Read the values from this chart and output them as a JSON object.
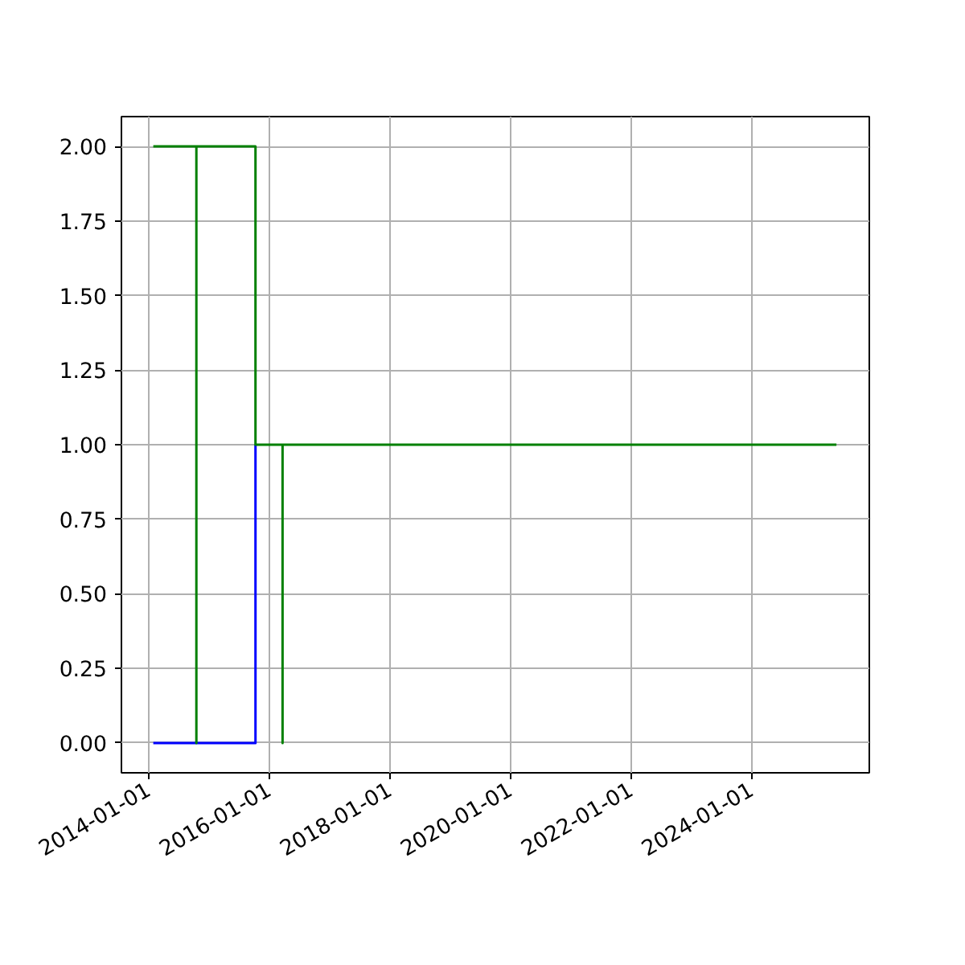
{
  "chart_data": {
    "type": "step",
    "series": [
      {
        "color": "#0000ff",
        "x": [
          "2014-02-01",
          "2015-10-13"
        ],
        "values": [
          0,
          1
        ]
      },
      {
        "color": "#008000",
        "x": [
          "2014-02-01",
          "2014-10-20",
          "2014-10-20",
          "2015-10-13",
          "2016-03-25",
          "2016-03-25",
          "2025-06-01"
        ],
        "values": [
          2,
          0,
          2,
          1,
          0,
          1,
          1
        ]
      }
    ],
    "xlim": [
      "2013-07-23",
      "2025-12-17"
    ],
    "xticks": [
      "2014-01-01",
      "2016-01-01",
      "2018-01-01",
      "2020-01-01",
      "2022-01-01",
      "2024-01-01"
    ],
    "ylim": [
      -0.1,
      2.1
    ],
    "yticks": [
      {
        "value": 0,
        "label": "0.00"
      },
      {
        "value": 0.25,
        "label": "0.25"
      },
      {
        "value": 0.5,
        "label": "0.50"
      },
      {
        "value": 0.75,
        "label": "0.75"
      },
      {
        "value": 1,
        "label": "1.00"
      },
      {
        "value": 1.25,
        "label": "1.25"
      },
      {
        "value": 1.5,
        "label": "1.50"
      },
      {
        "value": 1.75,
        "label": "1.75"
      },
      {
        "value": 2,
        "label": "2.00"
      }
    ],
    "grid": true
  }
}
